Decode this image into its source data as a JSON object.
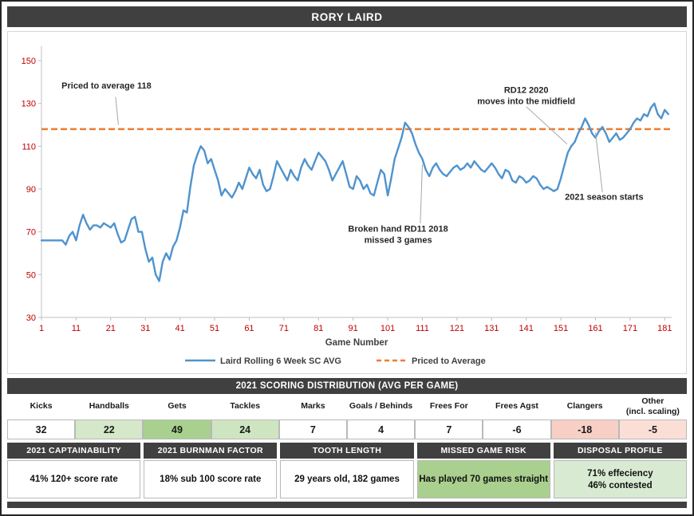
{
  "title": "RORY LAIRD",
  "colors": {
    "header_bar": "#404040",
    "line_blue": "#4f93ce",
    "line_orange": "#ed7d31",
    "axis_label_red": "#c00000",
    "green_strong": "#a9d08e",
    "green_light": "#d5e8c9",
    "pink_strong": "#f7cfc4",
    "pink_light": "#fbdfd6"
  },
  "chart_data": {
    "type": "line",
    "xlabel": "Game Number",
    "xlim": [
      1,
      183
    ],
    "ylim": [
      30,
      150
    ],
    "x_ticks": [
      1,
      11,
      21,
      31,
      41,
      51,
      61,
      71,
      81,
      91,
      101,
      111,
      121,
      131,
      141,
      151,
      161,
      171,
      181
    ],
    "y_ticks": [
      30,
      50,
      70,
      90,
      110,
      130,
      150
    ],
    "axis_color": "#c00000",
    "grid": false,
    "legend_position": "bottom",
    "series": [
      {
        "name": "Laird Rolling 6 Week SC AVG",
        "color": "#4f93ce",
        "style": "solid",
        "values": [
          66,
          66,
          66,
          66,
          66,
          66,
          66,
          64,
          68,
          70,
          66,
          73,
          78,
          74,
          71,
          73,
          73,
          72,
          74,
          73,
          72,
          74,
          69,
          65,
          66,
          71,
          76,
          77,
          70,
          70,
          62,
          56,
          58,
          50,
          47,
          56,
          60,
          57,
          63,
          66,
          72,
          80,
          79,
          91,
          101,
          106,
          110,
          108,
          102,
          104,
          99,
          94,
          87,
          90,
          88,
          86,
          89,
          93,
          90,
          95,
          100,
          97,
          95,
          99,
          92,
          89,
          90,
          96,
          103,
          100,
          97,
          94,
          99,
          96,
          94,
          100,
          104,
          101,
          99,
          103,
          107,
          105,
          103,
          99,
          94,
          97,
          100,
          103,
          97,
          91,
          90,
          96,
          94,
          90,
          92,
          88,
          87,
          93,
          99,
          97,
          87,
          95,
          104,
          109,
          114,
          121,
          119,
          116,
          111,
          107,
          104,
          99,
          96,
          100,
          102,
          99,
          97,
          96,
          98,
          100,
          101,
          99,
          100,
          102,
          100,
          103,
          101,
          99,
          98,
          100,
          102,
          100,
          97,
          95,
          99,
          98,
          94,
          93,
          96,
          95,
          93,
          94,
          96,
          95,
          92,
          90,
          91,
          90,
          89,
          90,
          95,
          101,
          107,
          110,
          112,
          116,
          119,
          123,
          120,
          116,
          114,
          117,
          119,
          116,
          112,
          114,
          116,
          113,
          114,
          116,
          118,
          121,
          123,
          122,
          125,
          124,
          128,
          130,
          125,
          123,
          127,
          125
        ]
      },
      {
        "name": "Priced to Average",
        "color": "#ed7d31",
        "style": "dashed",
        "constant": 118
      }
    ],
    "annotations": [
      {
        "lines": [
          "Priced to average 118"
        ],
        "g": 6.8,
        "v": 137,
        "align": "start",
        "leader": {
          "g1": 22.4,
          "v1": 133,
          "g2": 23.2,
          "v2": 120
        }
      },
      {
        "lines": [
          "RD12 2020",
          "moves into the midfield"
        ],
        "g": 141,
        "v": 135,
        "align": "middle",
        "leader": {
          "g1": 141,
          "v1": 128.5,
          "g2": 152.8,
          "v2": 111
        }
      },
      {
        "lines": [
          "2021 season starts"
        ],
        "g": 163.5,
        "v": 85,
        "align": "middle",
        "leader": {
          "g1": 163,
          "v1": 88.5,
          "g2": 161,
          "v2": 116.5
        }
      },
      {
        "lines": [
          "Broken hand RD11 2018",
          "missed 3 games"
        ],
        "g": 104,
        "v": 70,
        "align": "middle",
        "leader": {
          "g1": 110.4,
          "v1": 74,
          "g2": 111,
          "v2": 101.5
        }
      }
    ]
  },
  "scoring": {
    "header": "2021 SCORING DISTRIBUTION (AVG PER GAME)",
    "columns": [
      {
        "label": "Kicks",
        "value": "32",
        "fill": "#ffffff"
      },
      {
        "label": "Handballs",
        "value": "22",
        "fill": "#d5e8c9"
      },
      {
        "label": "Gets",
        "value": "49",
        "fill": "#a9d08e"
      },
      {
        "label": "Tackles",
        "value": "24",
        "fill": "#cfe5c1"
      },
      {
        "label": "Marks",
        "value": "7",
        "fill": "#ffffff"
      },
      {
        "label": "Goals / Behinds",
        "value": "4",
        "fill": "#ffffff"
      },
      {
        "label": "Frees For",
        "value": "7",
        "fill": "#ffffff"
      },
      {
        "label": "Frees Agst",
        "value": "-6",
        "fill": "#ffffff"
      },
      {
        "label": "Clangers",
        "value": "-18",
        "fill": "#f7cfc4"
      },
      {
        "label": "Other\n(incl. scaling)",
        "value": "-5",
        "fill": "#fbdfd6"
      }
    ]
  },
  "panels": [
    {
      "header": "2021 CAPTAINABILITY",
      "lines": [
        "41% 120+ score rate"
      ],
      "fill": "#ffffff"
    },
    {
      "header": "2021 BURNMAN FACTOR",
      "lines": [
        "18% sub 100 score rate"
      ],
      "fill": "#ffffff"
    },
    {
      "header": "TOOTH LENGTH",
      "lines": [
        "29 years old, 182 games"
      ],
      "fill": "#ffffff"
    },
    {
      "header": "MISSED GAME RISK",
      "lines": [
        "Has played 70 games straight"
      ],
      "fill": "#a9d08e"
    },
    {
      "header": "DISPOSAL PROFILE",
      "lines": [
        "71% effeciency",
        "46% contested"
      ],
      "fill": "#d9ead3"
    }
  ]
}
